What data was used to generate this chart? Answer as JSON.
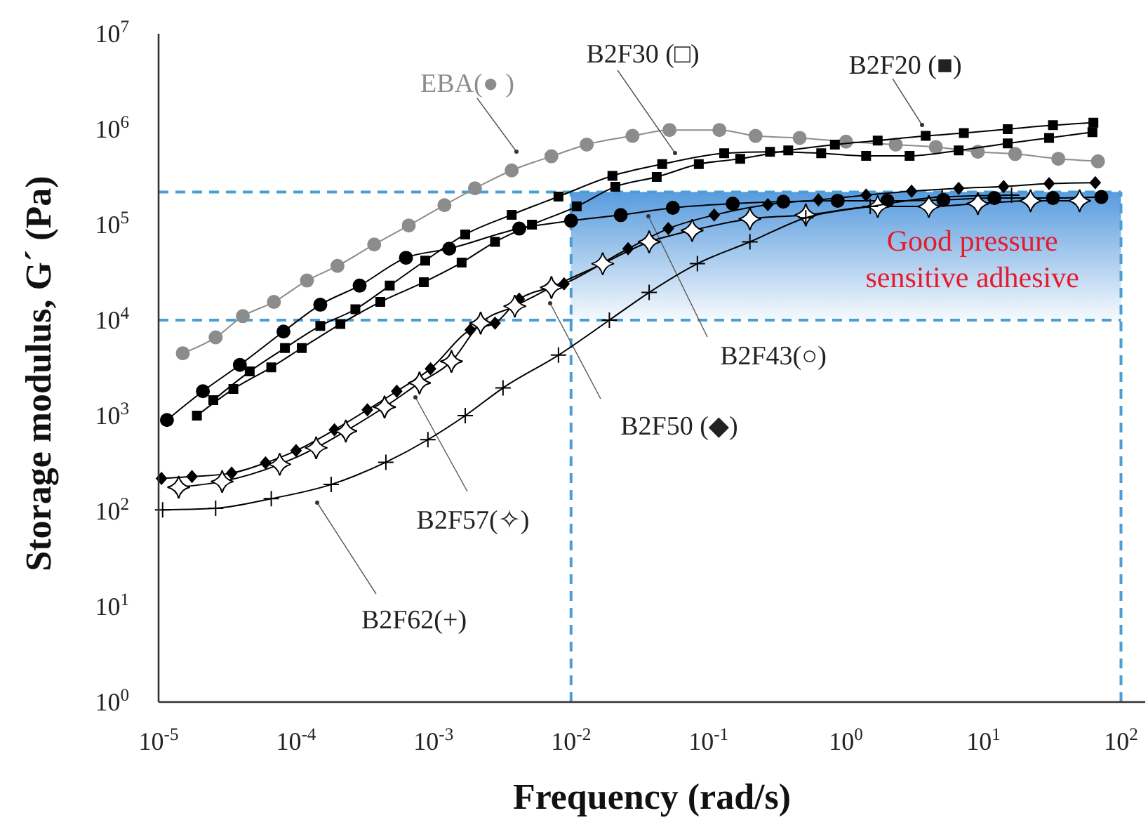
{
  "chart_data": {
    "type": "line",
    "xlabel": "Frequency (rad/s)",
    "ylabel": "Storage modulus, G´ (Pa)",
    "log": "xy",
    "grid": false,
    "legend": false,
    "line_style": "solid",
    "xlim": [
      1e-05,
      150
    ],
    "ylim": [
      1,
      10000000.0
    ],
    "xticks": [
      {
        "value": 1e-05,
        "label": "10$^{-5}$"
      },
      {
        "value": 0.0001,
        "label": "10$^{-4}$"
      },
      {
        "value": 0.001,
        "label": "10$^{-3}$"
      },
      {
        "value": 0.01,
        "label": "10$^{-2}$"
      },
      {
        "value": 0.1,
        "label": "10$^{-1}$"
      },
      {
        "value": 1,
        "label": "10$^{0}$"
      },
      {
        "value": 10,
        "label": "10$^{1}$"
      },
      {
        "value": 100,
        "label": "10$^{2}$"
      }
    ],
    "yticks": [
      {
        "value": 1,
        "label": "10$^{0}$"
      },
      {
        "value": 10,
        "label": "10$^{1}$"
      },
      {
        "value": 100,
        "label": "10$^{2}$"
      },
      {
        "value": 1000,
        "label": "10$^{3}$"
      },
      {
        "value": 10000,
        "label": "10$^{4}$"
      },
      {
        "value": 100000,
        "label": "10$^{5}$"
      },
      {
        "value": 1000000,
        "label": "10$^{6}$"
      },
      {
        "value": 10000000,
        "label": "10$^{7}$"
      }
    ],
    "series": [
      {
        "name": "EBA(● )",
        "color": "#8c8c8c",
        "marker": "circle",
        "x": [
          1.5e-05,
          2.6e-05,
          4.1e-05,
          6.9e-05,
          0.00012,
          0.0002,
          0.00037,
          0.00066,
          0.0012,
          0.002,
          0.0037,
          0.0072,
          0.013,
          0.028,
          0.052,
          0.12,
          0.22,
          0.46,
          1,
          2.3,
          4.5,
          9.1,
          17,
          35,
          68
        ],
        "values": [
          4500,
          6600,
          11000,
          15500,
          26000,
          37000,
          62000,
          98000,
          160000,
          240000,
          370000,
          520000,
          690000,
          850000,
          980000,
          980000,
          850000,
          810000,
          740000,
          690000,
          650000,
          580000,
          550000,
          490000,
          460000
        ]
      },
      {
        "name": "B2F30 (□)",
        "color": "#000000",
        "marker": "square",
        "x": [
          2.5e-05,
          4.6e-05,
          8.3e-05,
          0.00015,
          0.00027,
          0.00048,
          0.00087,
          0.0017,
          0.0037,
          0.0081,
          0.02,
          0.046,
          0.13,
          0.28,
          0.66,
          1.4,
          2.9,
          6.6,
          15,
          30,
          62
        ],
        "values": [
          1450,
          2900,
          5100,
          8700,
          13000,
          23000,
          42000,
          79000,
          127000,
          197000,
          325000,
          430000,
          560000,
          580000,
          560000,
          525000,
          525000,
          600000,
          710000,
          810000,
          930000
        ]
      },
      {
        "name": "B2F20 (■)",
        "color": "#000000",
        "marker": "square",
        "x": [
          1.9e-05,
          3.5e-05,
          6.6e-05,
          0.00011,
          0.00021,
          0.00041,
          0.00085,
          0.0016,
          0.0028,
          0.0052,
          0.011,
          0.021,
          0.042,
          0.085,
          0.17,
          0.38,
          0.83,
          1.7,
          3.8,
          7.2,
          15,
          32,
          63
        ],
        "values": [
          1000,
          1900,
          3200,
          5100,
          9100,
          15500,
          25000,
          40000,
          66000,
          100000,
          155000,
          250000,
          316000,
          430000,
          490000,
          600000,
          690000,
          760000,
          850000,
          910000,
          1000000,
          1100000,
          1170000
        ]
      },
      {
        "name": "B2F43(○)",
        "color": "#000000",
        "marker": "circle",
        "x": [
          1.15e-05,
          2.1e-05,
          3.9e-05,
          8.1e-05,
          0.00015,
          0.00029,
          0.00063,
          0.0013,
          0.0042,
          0.01,
          0.023,
          0.055,
          0.15,
          0.35,
          0.87,
          2,
          5.1,
          12,
          32,
          72
        ],
        "values": [
          900,
          1800,
          3400,
          7600,
          14500,
          23000,
          45000,
          56000,
          91000,
          110000,
          126000,
          150000,
          166000,
          174000,
          178000,
          178000,
          182000,
          190000,
          190000,
          195000
        ]
      },
      {
        "name": "B2F50 (◆)",
        "color": "#000000",
        "marker": "diamond",
        "x": [
          1.05e-05,
          1.75e-05,
          3.4e-05,
          6e-05,
          0.0001,
          0.00019,
          0.00033,
          0.00054,
          0.00095,
          0.00185,
          0.0028,
          0.0042,
          0.0089,
          0.026,
          0.051,
          0.11,
          0.27,
          0.63,
          1.4,
          3,
          6.6,
          14,
          30,
          65
        ],
        "values": [
          220,
          230,
          250,
          320,
          430,
          710,
          1150,
          1800,
          3100,
          7900,
          9300,
          16600,
          24000,
          56000,
          91000,
          126000,
          162000,
          182000,
          204000,
          224000,
          240000,
          251000,
          269000,
          275000
        ]
      },
      {
        "name": "B2F57(✧)",
        "color": "#000000",
        "marker": "star",
        "x": [
          1.4e-05,
          2.9e-05,
          7.6e-05,
          0.00014,
          0.00023,
          0.00044,
          0.00079,
          0.00135,
          0.0022,
          0.0039,
          0.0072,
          0.017,
          0.037,
          0.076,
          0.2,
          0.51,
          1.7,
          4,
          9.1,
          22,
          50
        ],
        "values": [
          178,
          204,
          309,
          460,
          690,
          1230,
          2200,
          3700,
          9300,
          14000,
          22000,
          39000,
          66000,
          87000,
          115000,
          126000,
          155000,
          155000,
          166000,
          178000,
          178000
        ]
      },
      {
        "name": "B2F62(+)",
        "color": "#000000",
        "marker": "cross",
        "x": [
          1.07e-05,
          2.6e-05,
          6.6e-05,
          0.00018,
          0.00045,
          0.00091,
          0.0017,
          0.0032,
          0.0081,
          0.019,
          0.037,
          0.083,
          0.2,
          0.51,
          1.5,
          5,
          16
        ],
        "values": [
          103,
          107,
          135,
          190,
          325,
          560,
          1000,
          1950,
          4300,
          10000,
          19500,
          39000,
          66000,
          118000,
          155000,
          195000,
          204000
        ]
      }
    ],
    "ref_lines": [
      {
        "axis": "y",
        "value": 10000,
        "color": "#4a9ed6",
        "line_style": "dashed"
      },
      {
        "axis": "y",
        "value": 220000,
        "color": "#4a9ed6",
        "line_style": "dashed"
      },
      {
        "axis": "x",
        "value": 0.01,
        "color": "#4a9ed6",
        "line_style": "dashed"
      },
      {
        "axis": "x",
        "value": 100,
        "color": "#4a9ed6",
        "line_style": "dashed"
      }
    ],
    "bands": [
      {
        "axis": "y",
        "from": 10000,
        "to": 220000,
        "label": "Good pressure sensitive adhesive",
        "color": "#4f96dc"
      }
    ]
  }
}
